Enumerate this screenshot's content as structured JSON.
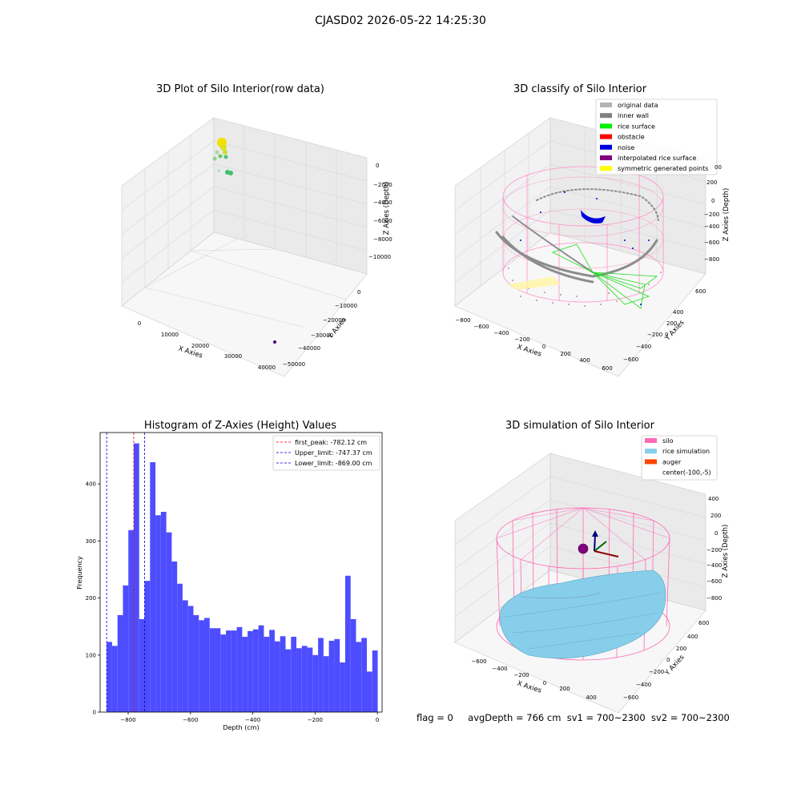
{
  "suptitle": "CJASD02 2026-05-22 14:25:30",
  "colors": {
    "hist_bar": "#4d4dff",
    "peak_line": "#ff0000",
    "limit_line": "#0000cc",
    "silo": "#ff69b4",
    "rice": "#87ceeb",
    "auger": "#ff4500",
    "inner_wall": "#808080",
    "rice_surface": "#00ee00",
    "noise": "#0000dd",
    "interp": "#800080",
    "symmetric": "#ffff00"
  },
  "plot1": {
    "title": "3D Plot of Silo Interior(row data)",
    "xlabel": "X Axies",
    "ylabel": "Y Axies",
    "zlabel": "Z Axies (Depth)",
    "xticks": [
      "0",
      "10000",
      "20000",
      "30000",
      "40000"
    ],
    "yticks": [
      "0",
      "−10000",
      "−20000",
      "−30000",
      "−40000",
      "−50000"
    ],
    "zticks": [
      "0",
      "−2000",
      "−4000",
      "−6000",
      "−8000",
      "−10000"
    ]
  },
  "plot2": {
    "title": "3D classify of Silo Interior",
    "xlabel": "X Axies",
    "ylabel": "Y Axies",
    "zlabel": "Z Axies (Depth)",
    "xticks": [
      "−800",
      "−600",
      "−400",
      "−200",
      "0",
      "200",
      "400",
      "600"
    ],
    "yticks": [
      "600",
      "400",
      "200",
      "0",
      "−200",
      "−400",
      "−600"
    ],
    "zticks": [
      "200",
      "0",
      "−200",
      "−400",
      "−600",
      "−800"
    ],
    "ztick_partial": "00",
    "legend": [
      {
        "label": "original data",
        "color": "#b3b3b3"
      },
      {
        "label": "inner wall",
        "color": "#808080"
      },
      {
        "label": "rice surface",
        "color": "#00ee00"
      },
      {
        "label": "obstacle",
        "color": "#ff0000"
      },
      {
        "label": "noise",
        "color": "#0000dd"
      },
      {
        "label": "interpolated rice surface",
        "color": "#800080"
      },
      {
        "label": "symmetric generated points",
        "color": "#ffff00"
      }
    ]
  },
  "plot3": {
    "title": "3D simulation of Silo Interior",
    "xlabel": "X Axies",
    "ylabel": "Y Axies",
    "zlabel": "Z Axies (Depth)",
    "xticks": [
      "−600",
      "−400",
      "−200",
      "0",
      "200",
      "400"
    ],
    "yticks": [
      "600",
      "400",
      "200",
      "0",
      "−200",
      "−400",
      "−600"
    ],
    "zticks": [
      "400",
      "200",
      "0",
      "−200",
      "−400",
      "−600",
      "−800"
    ],
    "legend": [
      {
        "label": "silo",
        "color": "#ff69b4"
      },
      {
        "label": "rice simulation",
        "color": "#87ceeb"
      },
      {
        "label": "auger",
        "color": "#ff4500"
      },
      {
        "label": "center(-100,-5)",
        "color": ""
      }
    ]
  },
  "status": {
    "flag": "flag = 0",
    "avg": "avgDepth = 766 cm",
    "sv1": "sv1 = 700~2300",
    "sv2": "sv2 = 700~2300"
  },
  "chart_data": [
    {
      "type": "bar",
      "title": "Histogram of Z-Axies (Height) Values",
      "xlabel": "Depth (cm)",
      "ylabel": "Frequency",
      "xlim": [
        -890,
        15
      ],
      "ylim": [
        0,
        490
      ],
      "xticks": [
        -800,
        -600,
        -400,
        -200,
        0
      ],
      "yticks": [
        0,
        100,
        200,
        300,
        400
      ],
      "bin_start": -869,
      "bin_width": 17.4,
      "values": [
        123,
        116,
        170,
        222,
        319,
        471,
        163,
        230,
        438,
        345,
        351,
        315,
        264,
        225,
        196,
        186,
        170,
        161,
        165,
        147,
        147,
        136,
        143,
        143,
        149,
        132,
        142,
        145,
        152,
        132,
        144,
        124,
        133,
        110,
        132,
        112,
        116,
        113,
        100,
        130,
        98,
        125,
        128,
        87,
        239,
        163,
        123,
        130,
        71,
        108
      ],
      "vlines": [
        {
          "name": "first_peak: -782.12 cm",
          "x": -782.12,
          "color": "#ff0000"
        },
        {
          "name": "Upper_limit: -747.37 cm",
          "x": -747.37,
          "color": "#0000cc"
        },
        {
          "name": "Lower_limit: -869.00 cm",
          "x": -869.0,
          "color": "#0000cc"
        }
      ],
      "legend_position": "top-right",
      "grid": false
    }
  ]
}
